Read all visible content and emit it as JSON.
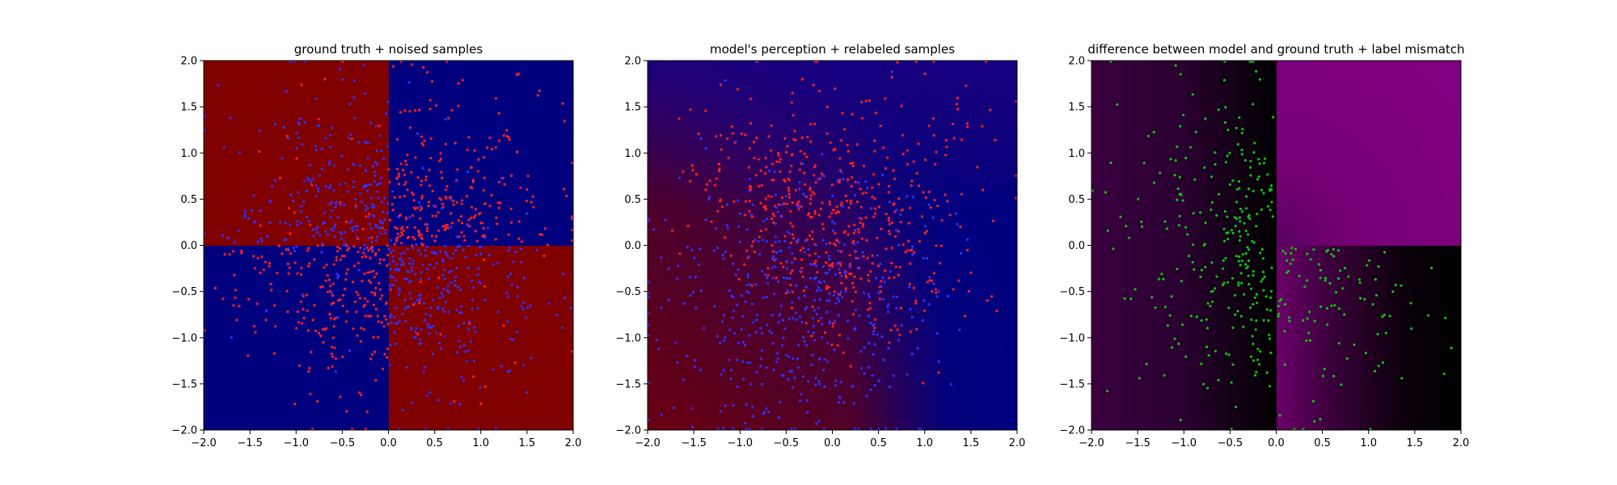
{
  "chart_data": [
    {
      "type": "heatmap",
      "title": "ground truth + noised samples",
      "xlim": [
        -2.0,
        2.0
      ],
      "ylim": [
        -2.0,
        2.0
      ],
      "xticks": [
        "-2.0",
        "-1.5",
        "-1.0",
        "-0.5",
        "0.0",
        "0.5",
        "1.0",
        "1.5",
        "2.0"
      ],
      "yticks": [
        "-2.0",
        "-1.5",
        "-1.0",
        "-0.5",
        "0.0",
        "0.5",
        "1.0",
        "1.5",
        "2.0"
      ],
      "grid": false,
      "background": "quadrant checkerboard: x*y<0 red, x*y>0 blue",
      "colors": {
        "positive_class": "#800000",
        "negative_class": "#00007f",
        "red_points": "#ff2020",
        "blue_points": "#3030ff"
      },
      "series": [
        {
          "color": "#ff2020",
          "points": "approx 500 samples, mostly in blue regions (x*y>0)"
        },
        {
          "color": "#3030ff",
          "points": "approx 500 samples, mostly in red regions (x*y<0)"
        }
      ]
    },
    {
      "type": "heatmap",
      "title": "model's perception + relabeled samples",
      "xlim": [
        -2.0,
        2.0
      ],
      "ylim": [
        -2.0,
        2.0
      ],
      "xticks": [
        "-2.0",
        "-1.5",
        "-1.0",
        "-0.5",
        "0.0",
        "0.5",
        "1.0",
        "1.5",
        "2.0"
      ],
      "yticks": [
        "-2.0",
        "-1.5",
        "-1.0",
        "-0.5",
        "0.0",
        "0.5",
        "1.0",
        "1.5",
        "2.0"
      ],
      "grid": false,
      "background": "smooth gradient: blue toward top-right and right, red toward bottom-left",
      "colors": {
        "red": "#800000",
        "blue": "#00007f",
        "red_points": "#ff2020",
        "blue_points": "#3030ff"
      },
      "series": [
        {
          "color": "#ff2020",
          "points": "dense band from (-1,0.7) to (0.5,-0.5), upper-right scattered"
        },
        {
          "color": "#3030ff",
          "points": "lower-left region"
        }
      ]
    },
    {
      "type": "heatmap",
      "title": "difference between model and ground truth + label mismatch",
      "xlim": [
        -2.0,
        2.0
      ],
      "ylim": [
        -2.0,
        2.0
      ],
      "xticks": [
        "-2.0",
        "-1.5",
        "-1.0",
        "-0.5",
        "0.0",
        "0.5",
        "1.0",
        "1.5",
        "2.0"
      ],
      "yticks": [
        "-2.0",
        "-1.5",
        "-1.0",
        "-0.5",
        "0.0",
        "0.5",
        "1.0",
        "1.5",
        "2.0"
      ],
      "grid": false,
      "background": "magenta-black difference map, bright magenta in top-right quadrant",
      "colors": {
        "magenta": "#800080",
        "black": "#000000",
        "points": "#10c010"
      },
      "series": [
        {
          "color": "#10c010",
          "points": "approx 350 mismatched samples, mostly left half and lower-right"
        }
      ]
    }
  ]
}
